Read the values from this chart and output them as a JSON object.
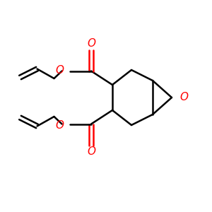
{
  "bg_color": "#ffffff",
  "bond_color": "#000000",
  "o_color": "#ff0000",
  "line_width": 1.8,
  "fig_size": [
    3.0,
    3.0
  ],
  "dpi": 100,
  "xlim": [
    0,
    10
  ],
  "ylim": [
    0,
    10
  ]
}
